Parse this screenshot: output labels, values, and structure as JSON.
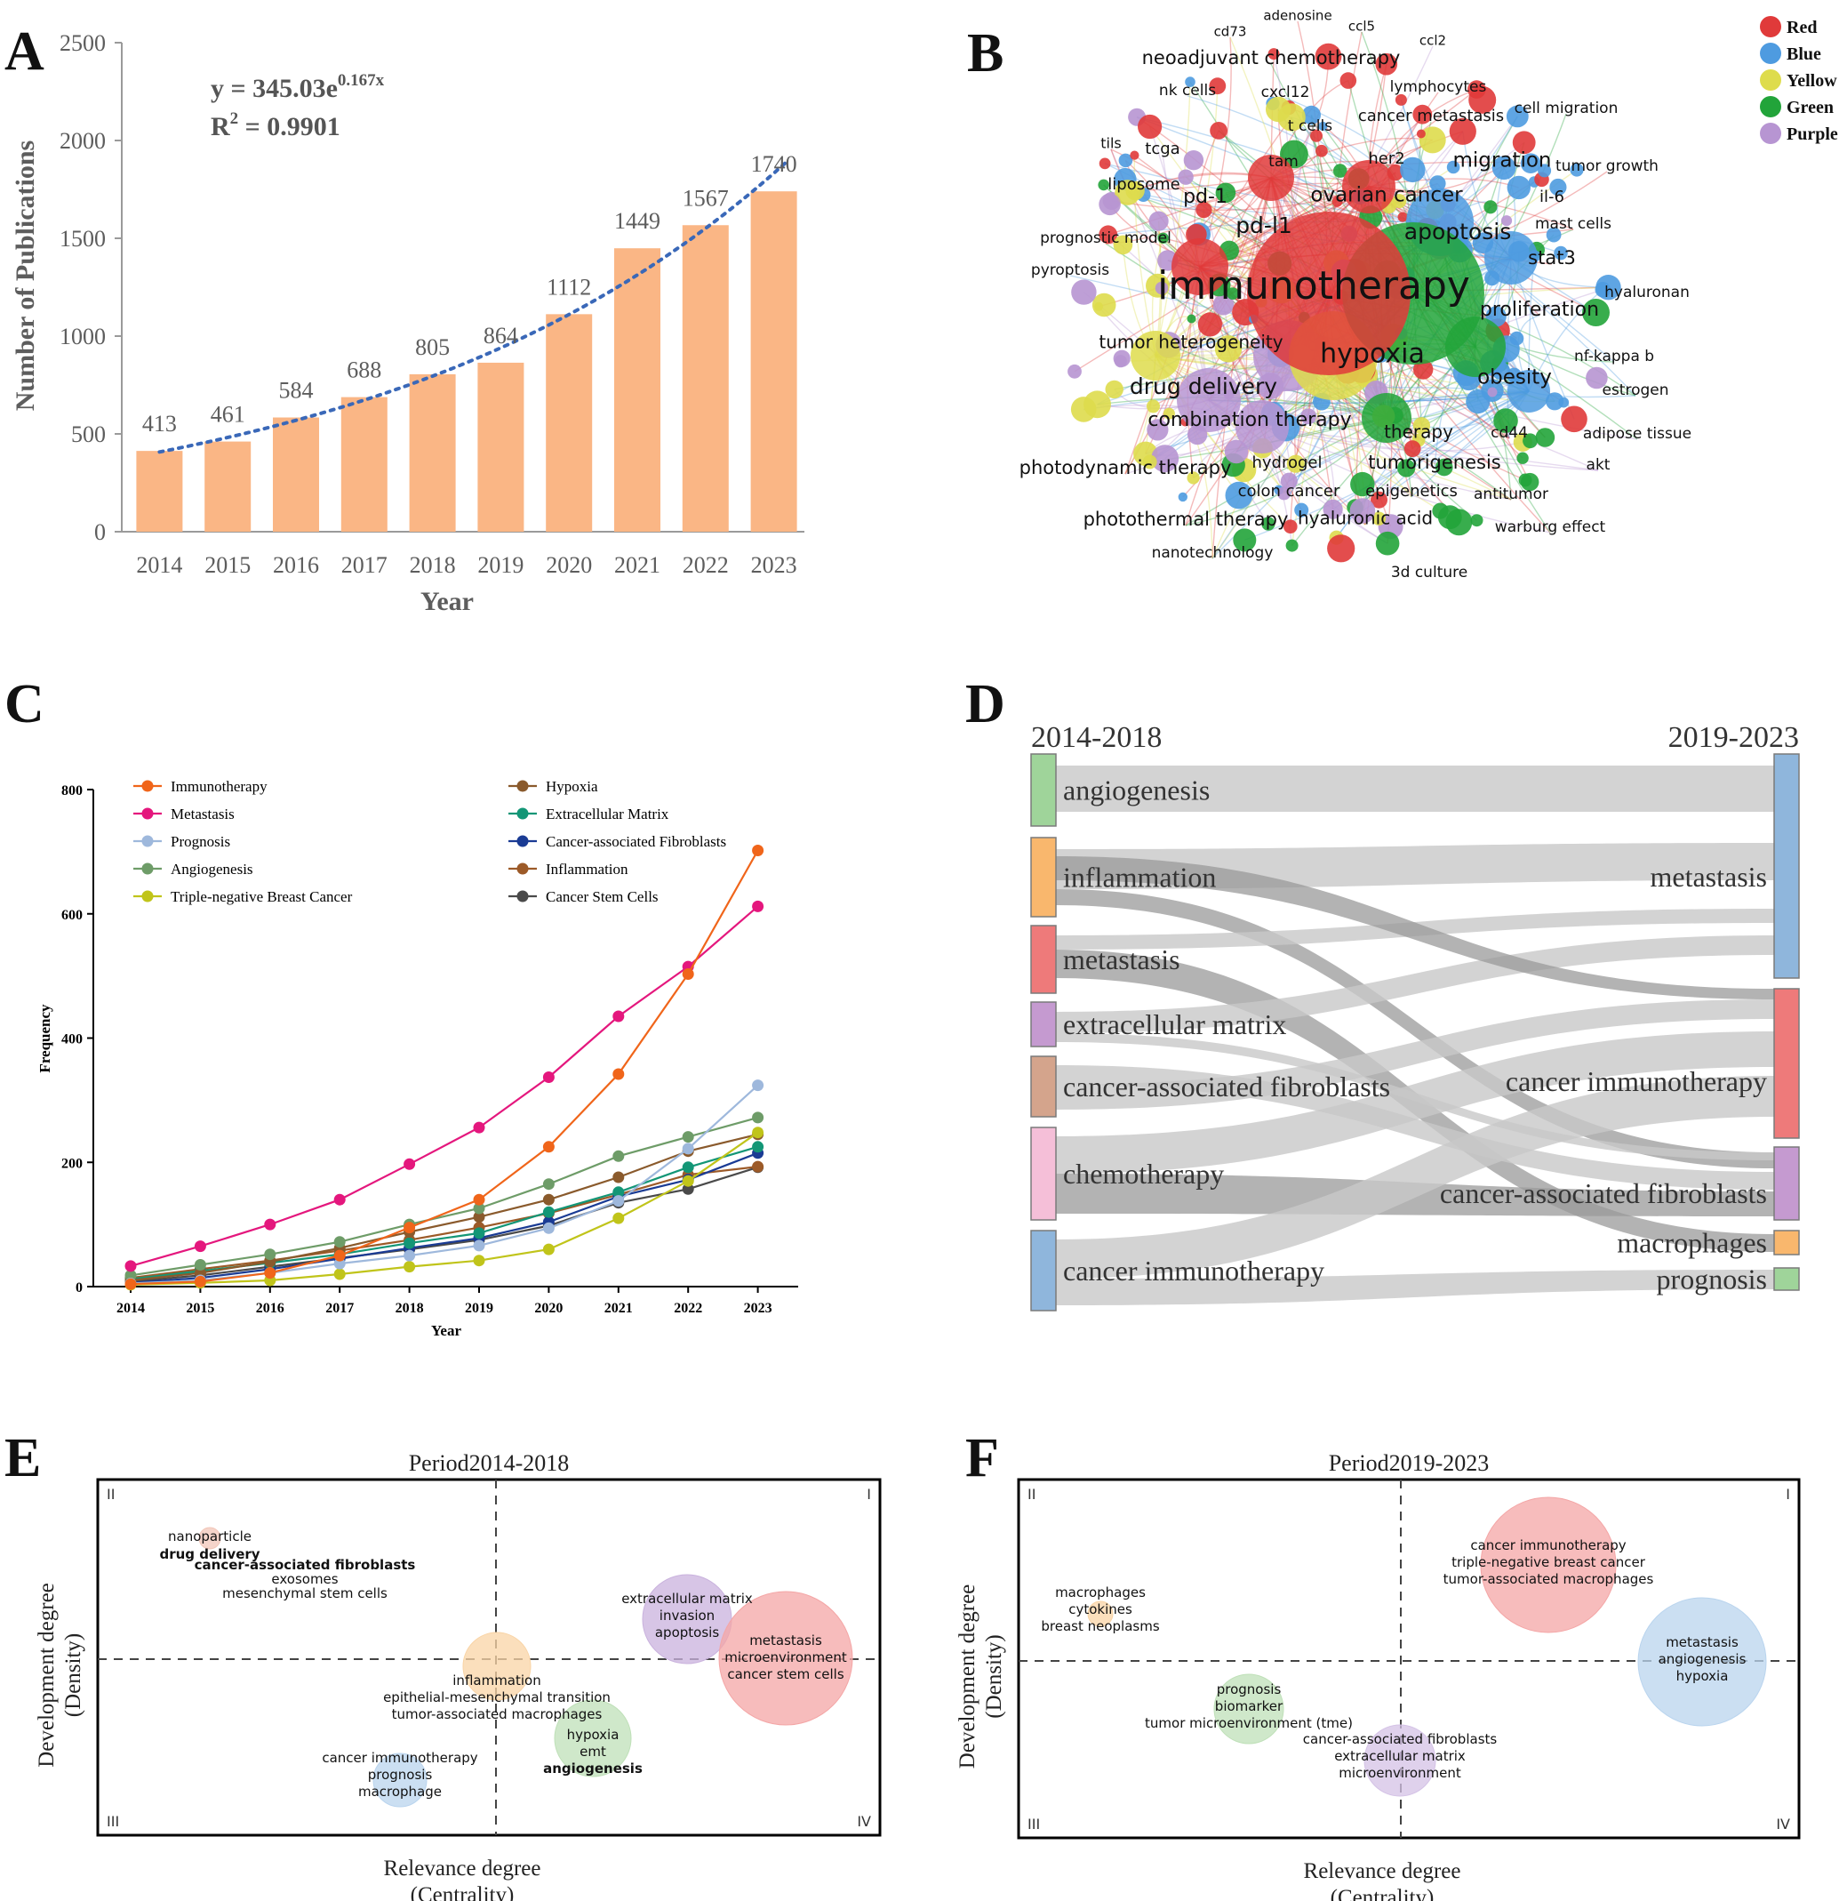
{
  "chart_data": [
    {
      "panel": "A",
      "type": "bar",
      "categories": [
        "2014",
        "2015",
        "2016",
        "2017",
        "2018",
        "2019",
        "2020",
        "2021",
        "2022",
        "2023"
      ],
      "values": [
        413,
        461,
        584,
        688,
        805,
        864,
        1112,
        1449,
        1567,
        1740
      ],
      "value_labels": [
        "413",
        "461",
        "584",
        "688",
        "805",
        "864",
        "1112",
        "1449",
        "1567",
        "1740"
      ],
      "xlabel": "Year",
      "ylabel": "Number of Publications",
      "ylim": [
        0,
        2500
      ],
      "yticks": [
        0,
        500,
        1000,
        1500,
        2000,
        2500
      ],
      "ytick_labels": [
        "0",
        "500",
        "1000",
        "1500",
        "2000",
        "2500"
      ],
      "equation": "y = 345.03e",
      "equation_exp": "0.167x",
      "r2_label": "R",
      "r2_sup": "2",
      "r2_value": " = 0.9901",
      "trend": {
        "a": 345.03,
        "b": 0.167
      },
      "bar_color": "#fab685",
      "trend_color": "#3a68b8"
    },
    {
      "panel": "B",
      "type": "network",
      "legend": [
        {
          "name": "Red",
          "color": "#e03a3a"
        },
        {
          "name": "Blue",
          "color": "#4e9be0"
        },
        {
          "name": "Yellow",
          "color": "#dedc4c"
        },
        {
          "name": "Green",
          "color": "#22a43a"
        },
        {
          "name": "Purple",
          "color": "#b795d2"
        }
      ],
      "keywords": [
        "adenosine",
        "ccl5",
        "cd73",
        "ccl2",
        "neoadjuvant chemotherapy",
        "nk cells",
        "cxcl12",
        "lymphocytes",
        "cell migration",
        "t cells",
        "cancer metastasis",
        "tils",
        "tcga",
        "tam",
        "her2",
        "migration",
        "tumor growth",
        "liposome",
        "pd-1",
        "ovarian cancer",
        "il-6",
        "pd-l1",
        "apoptosis",
        "mast cells",
        "prognostic model",
        "stat3",
        "pyroptosis",
        "immunotherapy",
        "hyaluronan",
        "proliferation",
        "tumor heterogeneity",
        "hypoxia",
        "nf-kappa b",
        "drug delivery",
        "obesity",
        "estrogen",
        "combination therapy",
        "therapy",
        "cd44",
        "adipose tissue",
        "photodynamic therapy",
        "hydrogel",
        "tumorigenesis",
        "akt",
        "colon cancer",
        "epigenetics",
        "antitumor",
        "photothermal therapy",
        "hyaluronic acid",
        "warburg effect",
        "nanotechnology",
        "3d culture"
      ]
    },
    {
      "panel": "C",
      "type": "line",
      "x": [
        "2014",
        "2015",
        "2016",
        "2017",
        "2018",
        "2019",
        "2020",
        "2021",
        "2022",
        "2023"
      ],
      "xlabel": "Year",
      "ylabel": "Frequency",
      "ylim": [
        0,
        800
      ],
      "yticks": [
        0,
        200,
        400,
        600,
        800
      ],
      "ytick_labels": [
        "0",
        "200",
        "400",
        "600",
        "800"
      ],
      "series": [
        {
          "name": "Immunotherapy",
          "color": "#f0651a",
          "values": [
            4,
            8,
            22,
            50,
            95,
            140,
            225,
            342,
            503,
            702
          ]
        },
        {
          "name": "Metastasis",
          "color": "#e4177d",
          "values": [
            33,
            65,
            100,
            140,
            197,
            256,
            337,
            435,
            515,
            612
          ]
        },
        {
          "name": "Prognosis",
          "color": "#9eb8dc",
          "values": [
            5,
            10,
            22,
            37,
            50,
            66,
            94,
            138,
            222,
            324
          ]
        },
        {
          "name": "Angiogenesis",
          "color": "#6e9c68",
          "values": [
            18,
            35,
            52,
            72,
            100,
            126,
            165,
            210,
            241,
            272
          ]
        },
        {
          "name": "Triple-negative Breast Cancer",
          "color": "#c0c41a",
          "values": [
            3,
            6,
            10,
            20,
            32,
            42,
            60,
            110,
            170,
            248
          ]
        },
        {
          "name": "Hypoxia",
          "color": "#8a5a2c",
          "values": [
            10,
            22,
            40,
            62,
            88,
            112,
            140,
            176,
            218,
            245
          ]
        },
        {
          "name": "Extracellular Matrix",
          "color": "#139676",
          "values": [
            12,
            25,
            38,
            52,
            70,
            86,
            120,
            152,
            192,
            225
          ]
        },
        {
          "name": "Cancer-associated Fibroblasts",
          "color": "#1a3b94",
          "values": [
            6,
            14,
            28,
            45,
            62,
            78,
            104,
            145,
            172,
            215
          ]
        },
        {
          "name": "Inflammation",
          "color": "#9c5a28",
          "values": [
            14,
            28,
            42,
            58,
            75,
            95,
            118,
            148,
            180,
            193
          ]
        },
        {
          "name": "Cancer Stem Cells",
          "color": "#4a4a4a",
          "values": [
            8,
            18,
            32,
            46,
            60,
            75,
            98,
            135,
            157,
            192
          ]
        }
      ]
    },
    {
      "panel": "D",
      "type": "sankey",
      "left_title": "2014-2018",
      "right_title": "2019-2023",
      "left_nodes": [
        {
          "label": "angiogenesis",
          "color": "#9fd49a"
        },
        {
          "label": "inflammation",
          "color": "#f9b76d"
        },
        {
          "label": "metastasis",
          "color": "#ee7a7a"
        },
        {
          "label": "extracellular matrix",
          "color": "#c59ad0"
        },
        {
          "label": "cancer-associated fibroblasts",
          "color": "#d4a48c"
        },
        {
          "label": "chemotherapy",
          "color": "#f5bfd8"
        },
        {
          "label": "cancer immunotherapy",
          "color": "#8fb6dc"
        }
      ],
      "right_nodes": [
        {
          "label": "metastasis",
          "color": "#8fb6dc"
        },
        {
          "label": "cancer immunotherapy",
          "color": "#ee7a7a"
        },
        {
          "label": "cancer-associated fibroblasts",
          "color": "#c59ad0"
        },
        {
          "label": "macrophages",
          "color": "#f9b76d"
        },
        {
          "label": "prognosis",
          "color": "#9fd49a"
        }
      ]
    },
    {
      "panel": "E",
      "type": "scatter",
      "title": "Period2014-2018",
      "xlabel": "Relevance degree",
      "xlabel2": "(Centrality)",
      "ylabel": "Development degree",
      "ylabel2": "(Density)",
      "quadrants": [
        "II",
        "I",
        "III",
        "IV"
      ],
      "clusters": [
        {
          "labels": [
            "nanoparticle",
            "drug delivery",
            "cancer-associated fibroblasts",
            "exosomes",
            "mesenchymal stem cells"
          ],
          "color": "#f2c6b8"
        },
        {
          "labels": [
            "extracellular matrix",
            "invasion",
            "apoptosis"
          ],
          "color": "#c9b2dd"
        },
        {
          "labels": [
            "metastasis",
            "microenvironment",
            "cancer stem cells"
          ],
          "color": "#f4a6a6"
        },
        {
          "labels": [
            "inflammation",
            "epithelial-mesenchymal transition",
            "tumor-associated macrophages"
          ],
          "color": "#f9d4a5"
        },
        {
          "labels": [
            "hypoxia",
            "emt",
            "angiogenesis"
          ],
          "color": "#bfe0b8"
        },
        {
          "labels": [
            "cancer immunotherapy",
            "prognosis",
            "macrophage"
          ],
          "color": "#b9d4ee"
        }
      ]
    },
    {
      "panel": "F",
      "type": "scatter",
      "title": "Period2019-2023",
      "xlabel": "Relevance degree",
      "xlabel2": "(Centrality)",
      "ylabel": "Development degree",
      "ylabel2": "(Density)",
      "quadrants": [
        "II",
        "I",
        "III",
        "IV"
      ],
      "clusters": [
        {
          "labels": [
            "macrophages",
            "cytokines",
            "breast neoplasms"
          ],
          "color": "#f9d4a5"
        },
        {
          "labels": [
            "cancer immunotherapy",
            "triple-negative breast cancer",
            "tumor-associated macrophages"
          ],
          "color": "#f4a6a6"
        },
        {
          "labels": [
            "metastasis",
            "angiogenesis",
            "hypoxia"
          ],
          "color": "#b9d4ee"
        },
        {
          "labels": [
            "prognosis",
            "biomarker",
            "tumor microenvironment (tme)"
          ],
          "color": "#bfe0b8"
        },
        {
          "labels": [
            "cancer-associated fibroblasts",
            "extracellular matrix",
            "microenvironment"
          ],
          "color": "#d4c2e6"
        }
      ]
    }
  ],
  "panel_letters": [
    "A",
    "B",
    "C",
    "D",
    "E",
    "F"
  ]
}
